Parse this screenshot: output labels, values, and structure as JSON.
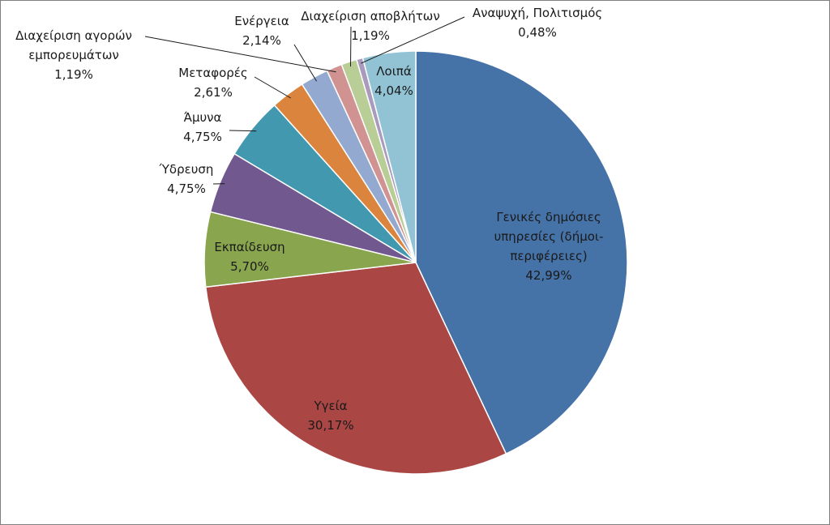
{
  "chart_data": {
    "type": "pie",
    "title": "",
    "slices": [
      {
        "label": "Γενικές δημόσιες υπηρεσίες (δήμοι-περιφέρειες)",
        "lines": [
          "Γενικές δημόσιες",
          "υπηρεσίες (δήμοι-",
          "περιφέρειες)"
        ],
        "value": 42.99,
        "value_label": "42,99%",
        "color": "#4572A7"
      },
      {
        "label": "Υγεία",
        "lines": [
          "Υγεία"
        ],
        "value": 30.17,
        "value_label": "30,17%",
        "color": "#AA4643"
      },
      {
        "label": "Εκπαίδευση",
        "lines": [
          "Εκπαίδευση"
        ],
        "value": 5.7,
        "value_label": "5,70%",
        "color": "#89A54E"
      },
      {
        "label": "Ύδρευση",
        "lines": [
          "Ύδρευση"
        ],
        "value": 4.75,
        "value_label": "4,75%",
        "color": "#71588F"
      },
      {
        "label": "Άμυνα",
        "lines": [
          "Άμυνα"
        ],
        "value": 4.75,
        "value_label": "4,75%",
        "color": "#4198AF"
      },
      {
        "label": "Μεταφορές",
        "lines": [
          "Μεταφορές"
        ],
        "value": 2.61,
        "value_label": "2,61%",
        "color": "#DB843D"
      },
      {
        "label": "Ενέργεια",
        "lines": [
          "Ενέργεια"
        ],
        "value": 2.14,
        "value_label": "2,14%",
        "color": "#93A9CF"
      },
      {
        "label": "Διαχείριση αγορών εμπορευμάτων",
        "lines": [
          "Διαχείριση αγορών",
          "εμπορευμάτων"
        ],
        "value": 1.19,
        "value_label": "1,19%",
        "color": "#D19392"
      },
      {
        "label": "Διαχείριση αποβλήτων",
        "lines": [
          "Διαχείριση αποβλήτων"
        ],
        "value": 1.19,
        "value_label": "1,19%",
        "color": "#B9CD96"
      },
      {
        "label": "Αναψυχή, Πολιτισμός",
        "lines": [
          "Αναψυχή, Πολιτισμός"
        ],
        "value": 0.48,
        "value_label": "0,48%",
        "color": "#A99BBD"
      },
      {
        "label": "Λοιπά",
        "lines": [
          "Λοιπά"
        ],
        "value": 4.04,
        "value_label": "4,04%",
        "color": "#91C3D5"
      }
    ],
    "legend": "none",
    "start": "12 o'clock, clockwise"
  }
}
